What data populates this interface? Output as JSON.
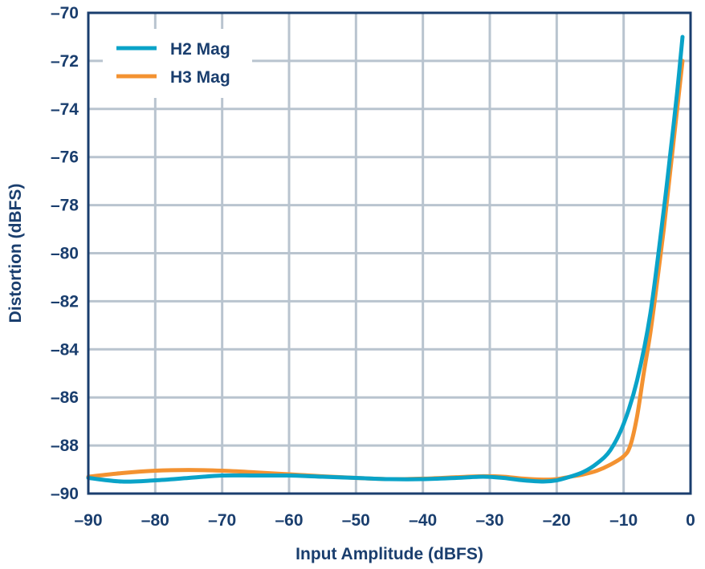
{
  "chart_data": {
    "type": "line",
    "xlabel": "Input Amplitude (dBFS)",
    "ylabel": "Distortion (dBFS)",
    "xlim": [
      -90,
      0
    ],
    "ylim": [
      -90,
      -70
    ],
    "xticks": [
      -90,
      -80,
      -70,
      -60,
      -50,
      -40,
      -30,
      -20,
      -10,
      0
    ],
    "xtick_labels": [
      "–90",
      "–80",
      "–70",
      "–60",
      "–50",
      "–40",
      "–30",
      "–20",
      "–10",
      "0"
    ],
    "yticks": [
      -70,
      -72,
      -74,
      -76,
      -78,
      -80,
      -82,
      -84,
      -86,
      -88,
      -90
    ],
    "ytick_labels": [
      "–70",
      "–72",
      "–74",
      "–76",
      "–78",
      "–80",
      "–82",
      "–84",
      "–86",
      "–88",
      "–90"
    ],
    "grid": true,
    "legend_position": "top-left",
    "series": [
      {
        "name": "H2 Mag",
        "color": "#0aa3c8",
        "x": [
          -90,
          -85,
          -80,
          -75,
          -70,
          -65,
          -60,
          -55,
          -50,
          -45,
          -40,
          -35,
          -31,
          -28,
          -25,
          -22,
          -20,
          -18,
          -16,
          -14,
          -12,
          -10,
          -8,
          -6,
          -4,
          -3,
          -2,
          -1.2
        ],
        "y": [
          -89.35,
          -89.5,
          -89.45,
          -89.35,
          -89.25,
          -89.25,
          -89.25,
          -89.3,
          -89.35,
          -89.4,
          -89.4,
          -89.35,
          -89.3,
          -89.35,
          -89.45,
          -89.5,
          -89.45,
          -89.3,
          -89.1,
          -88.75,
          -88.2,
          -87.1,
          -85.3,
          -82.5,
          -78.2,
          -75.8,
          -73.3,
          -71.0
        ]
      },
      {
        "name": "H3 Mag",
        "color": "#f39231",
        "x": [
          -90,
          -85,
          -80,
          -75,
          -70,
          -65,
          -60,
          -55,
          -50,
          -45,
          -40,
          -35,
          -31,
          -28,
          -25,
          -22,
          -20,
          -18,
          -16,
          -14,
          -12,
          -10,
          -9,
          -8,
          -7,
          -6,
          -5,
          -4,
          -3,
          -2,
          -1.2
        ],
        "y": [
          -89.3,
          -89.15,
          -89.05,
          -89.02,
          -89.05,
          -89.12,
          -89.2,
          -89.28,
          -89.35,
          -89.4,
          -89.38,
          -89.32,
          -89.28,
          -89.3,
          -89.38,
          -89.42,
          -89.4,
          -89.3,
          -89.2,
          -89.05,
          -88.8,
          -88.45,
          -88.0,
          -86.8,
          -85.0,
          -83.3,
          -81.2,
          -79.0,
          -76.5,
          -74.0,
          -72.0
        ]
      }
    ]
  }
}
